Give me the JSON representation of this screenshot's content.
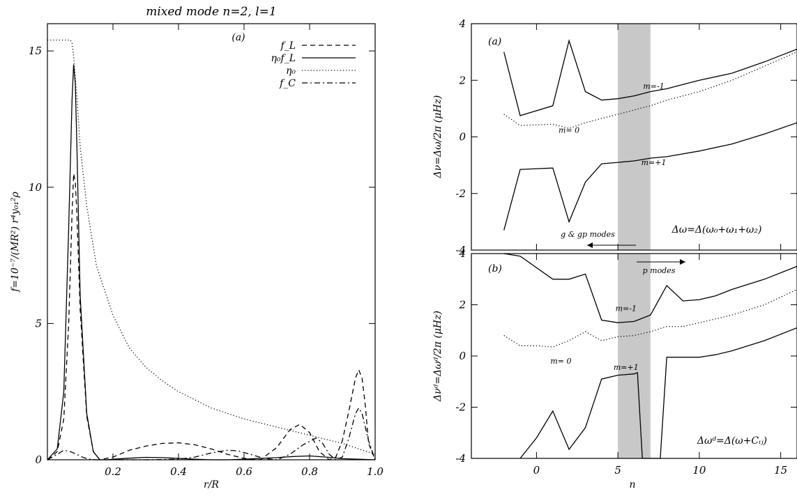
{
  "left_title": "mixed mode n=2, l=1",
  "left_panel_tag": "(a)",
  "left_xlabel": "r/R",
  "left_ylabel": "f=10⁻⁷/(MR²) r⁴y₀₁²ρ",
  "right_xlabel": "n",
  "right_top_ylabel": "Δν=Δω/2π (μHz)",
  "right_bottom_ylabel": "Δνᵈ=Δωᵈ/2π (μHz)",
  "right_top_tag": "(a)",
  "right_bottom_tag": "(b)",
  "right_top_formula": "Δω=Δ(ω₀+ω₁+ω₂)",
  "right_bottom_formula": "Δωᵈ=Δ(ω+Cᵢⱼ)",
  "annot_g_modes": "g & gp modes",
  "annot_p_modes": "p modes",
  "chart_data": [
    {
      "type": "line",
      "xlim": [
        0,
        1.0
      ],
      "ylim": [
        0,
        16
      ],
      "xticks": [
        0.2,
        0.4,
        0.6,
        0.8,
        1.0
      ],
      "xtick_labels": [
        "0.2",
        "0.4",
        "0.6",
        "0.8",
        "1.0"
      ],
      "yticks": [
        0,
        5,
        10,
        15
      ],
      "ytick_labels": [
        "0",
        "5",
        "10",
        "15"
      ],
      "legend_position": "top-right",
      "series": [
        {
          "name": "f_L",
          "style": "dashed",
          "x": [
            0,
            0.03,
            0.05,
            0.065,
            0.075,
            0.08,
            0.085,
            0.09,
            0.1,
            0.12,
            0.14,
            0.16,
            0.18,
            0.2,
            0.25,
            0.3,
            0.35,
            0.4,
            0.45,
            0.5,
            0.55,
            0.6,
            0.65,
            0.7,
            0.74,
            0.77,
            0.8,
            0.83,
            0.86,
            0.88,
            0.9,
            0.92,
            0.94,
            0.95,
            0.96,
            0.97,
            0.98,
            1.0
          ],
          "y": [
            0,
            0.3,
            1.5,
            5.0,
            9.0,
            10.5,
            10.2,
            9.0,
            5.5,
            1.6,
            0.3,
            0.0,
            0.05,
            0.1,
            0.35,
            0.5,
            0.6,
            0.62,
            0.55,
            0.4,
            0.2,
            0.05,
            0.0,
            0.45,
            1.1,
            1.3,
            1.0,
            0.3,
            0.0,
            0.1,
            0.7,
            1.8,
            3.0,
            3.3,
            3.0,
            2.0,
            0.6,
            0.0
          ]
        },
        {
          "name": "η₀f_L",
          "style": "solid",
          "x": [
            0,
            0.03,
            0.05,
            0.065,
            0.075,
            0.08,
            0.085,
            0.09,
            0.1,
            0.12,
            0.14,
            0.16,
            0.18,
            0.2,
            0.25,
            0.3,
            0.35,
            0.4,
            0.45,
            0.5,
            0.55,
            0.6,
            0.65,
            0.7,
            0.75,
            0.8,
            0.85,
            0.9,
            0.95,
            1.0
          ],
          "y": [
            0,
            0.4,
            2.5,
            8.5,
            13.2,
            14.5,
            13.8,
            11.5,
            6.0,
            1.7,
            0.3,
            0.0,
            0.0,
            0.02,
            0.06,
            0.09,
            0.08,
            0.05,
            0.02,
            0.0,
            0.0,
            0.02,
            0.05,
            0.08,
            0.12,
            0.14,
            0.1,
            0.04,
            0.02,
            0.0
          ]
        },
        {
          "name": "η₀",
          "style": "dotted",
          "x": [
            0,
            0.07,
            0.075,
            0.08,
            0.085,
            0.09,
            0.1,
            0.12,
            0.15,
            0.2,
            0.25,
            0.3,
            0.35,
            0.4,
            0.45,
            0.5,
            0.6,
            0.7,
            0.8,
            0.9,
            0.95,
            1.0
          ],
          "y": [
            15.4,
            15.4,
            15.3,
            14.8,
            14.0,
            13.3,
            11.5,
            9.3,
            7.1,
            5.3,
            4.1,
            3.4,
            2.9,
            2.5,
            2.2,
            1.9,
            1.5,
            1.2,
            0.9,
            0.6,
            0.4,
            0.2
          ]
        },
        {
          "name": "f_C",
          "style": "dashdot",
          "x": [
            0,
            0.03,
            0.05,
            0.07,
            0.09,
            0.11,
            0.13,
            0.15,
            0.2,
            0.3,
            0.4,
            0.45,
            0.5,
            0.55,
            0.58,
            0.62,
            0.66,
            0.7,
            0.74,
            0.78,
            0.82,
            0.84,
            0.86,
            0.88,
            0.9,
            0.92,
            0.94,
            0.95,
            0.96,
            0.98,
            1.0
          ],
          "y": [
            0,
            0.2,
            0.35,
            0.3,
            0.2,
            0.08,
            0.02,
            0.0,
            0.0,
            0.0,
            0.02,
            0.1,
            0.25,
            0.35,
            0.33,
            0.2,
            0.05,
            0.0,
            0.2,
            0.55,
            0.8,
            0.6,
            0.2,
            0.0,
            0.1,
            0.8,
            1.7,
            1.9,
            1.7,
            0.7,
            0.0
          ]
        }
      ]
    },
    {
      "type": "line",
      "xlim": [
        -4,
        16
      ],
      "ylim": [
        -4,
        4
      ],
      "xticks": [
        0,
        5,
        10,
        15
      ],
      "yticks": [
        -4,
        -2,
        0,
        2,
        4
      ],
      "ytick_labels": [
        "-4",
        "-2",
        "0",
        "2",
        "4"
      ],
      "shaded_region": [
        5,
        7
      ],
      "series": [
        {
          "name": "m=-1",
          "style": "solid",
          "x": [
            -2,
            -1,
            1,
            2,
            3,
            4,
            5,
            6,
            7,
            8,
            9,
            10,
            12,
            14,
            16
          ],
          "y": [
            3.0,
            0.75,
            1.1,
            3.4,
            1.6,
            1.3,
            1.35,
            1.45,
            1.6,
            1.7,
            1.85,
            2.0,
            2.25,
            2.65,
            3.1
          ]
        },
        {
          "name": "m= 0",
          "style": "dotted",
          "x": [
            -2,
            -1,
            1,
            2,
            3,
            4,
            5,
            6,
            7,
            8,
            10,
            12,
            14,
            16
          ],
          "y": [
            0.8,
            0.4,
            0.45,
            0.3,
            0.5,
            0.65,
            0.8,
            0.95,
            1.1,
            1.3,
            1.6,
            2.0,
            2.5,
            3.0
          ]
        },
        {
          "name": "m=+1",
          "style": "solid",
          "x": [
            -2,
            -1,
            1,
            2,
            3,
            4,
            5,
            6,
            7,
            8,
            10,
            12,
            14,
            16
          ],
          "y": [
            -3.3,
            -1.15,
            -1.1,
            -3.0,
            -1.6,
            -0.95,
            -0.9,
            -0.85,
            -0.75,
            -0.7,
            -0.5,
            -0.25,
            0.1,
            0.5
          ]
        }
      ]
    },
    {
      "type": "line",
      "xlim": [
        -4,
        16
      ],
      "ylim": [
        -4,
        4
      ],
      "xticks": [
        0,
        5,
        10,
        15
      ],
      "xtick_labels": [
        "0",
        "5",
        "10",
        "15"
      ],
      "yticks": [
        -4,
        -2,
        0,
        2,
        4
      ],
      "ytick_labels": [
        "-4",
        "-2",
        "0",
        "2",
        "4"
      ],
      "shaded_region": [
        5,
        7
      ],
      "series": [
        {
          "name": "m=-1",
          "style": "solid",
          "x": [
            -2,
            -1,
            1,
            2,
            3,
            4,
            5,
            6,
            7,
            8,
            9,
            10,
            11,
            12,
            14,
            16
          ],
          "y": [
            4.0,
            3.9,
            3.0,
            3.0,
            3.2,
            1.4,
            1.3,
            1.35,
            1.6,
            2.75,
            2.15,
            2.2,
            2.35,
            2.6,
            3.0,
            3.5
          ]
        },
        {
          "name": "m= 0",
          "style": "dotted",
          "x": [
            -2,
            -1,
            0,
            1,
            2,
            3,
            4,
            5,
            6,
            7,
            8,
            9,
            10,
            12,
            14,
            16
          ],
          "y": [
            0.8,
            0.4,
            0.4,
            0.35,
            0.6,
            0.95,
            0.6,
            0.75,
            0.8,
            0.95,
            1.15,
            1.15,
            1.3,
            1.6,
            2.0,
            2.6
          ]
        },
        {
          "name": "m=+1",
          "style": "solid",
          "x": [
            -1,
            0,
            1,
            2,
            3,
            4,
            5,
            6,
            6.2,
            6.5,
            7.6,
            8,
            9,
            10,
            11,
            12,
            14,
            16
          ],
          "y": [
            -4.2,
            -3.2,
            -2.15,
            -3.65,
            -2.8,
            -0.9,
            -0.75,
            -0.7,
            -0.65,
            -4.2,
            -4.2,
            -0.05,
            -0.05,
            -0.05,
            0.05,
            0.2,
            0.6,
            1.1
          ]
        }
      ]
    }
  ]
}
